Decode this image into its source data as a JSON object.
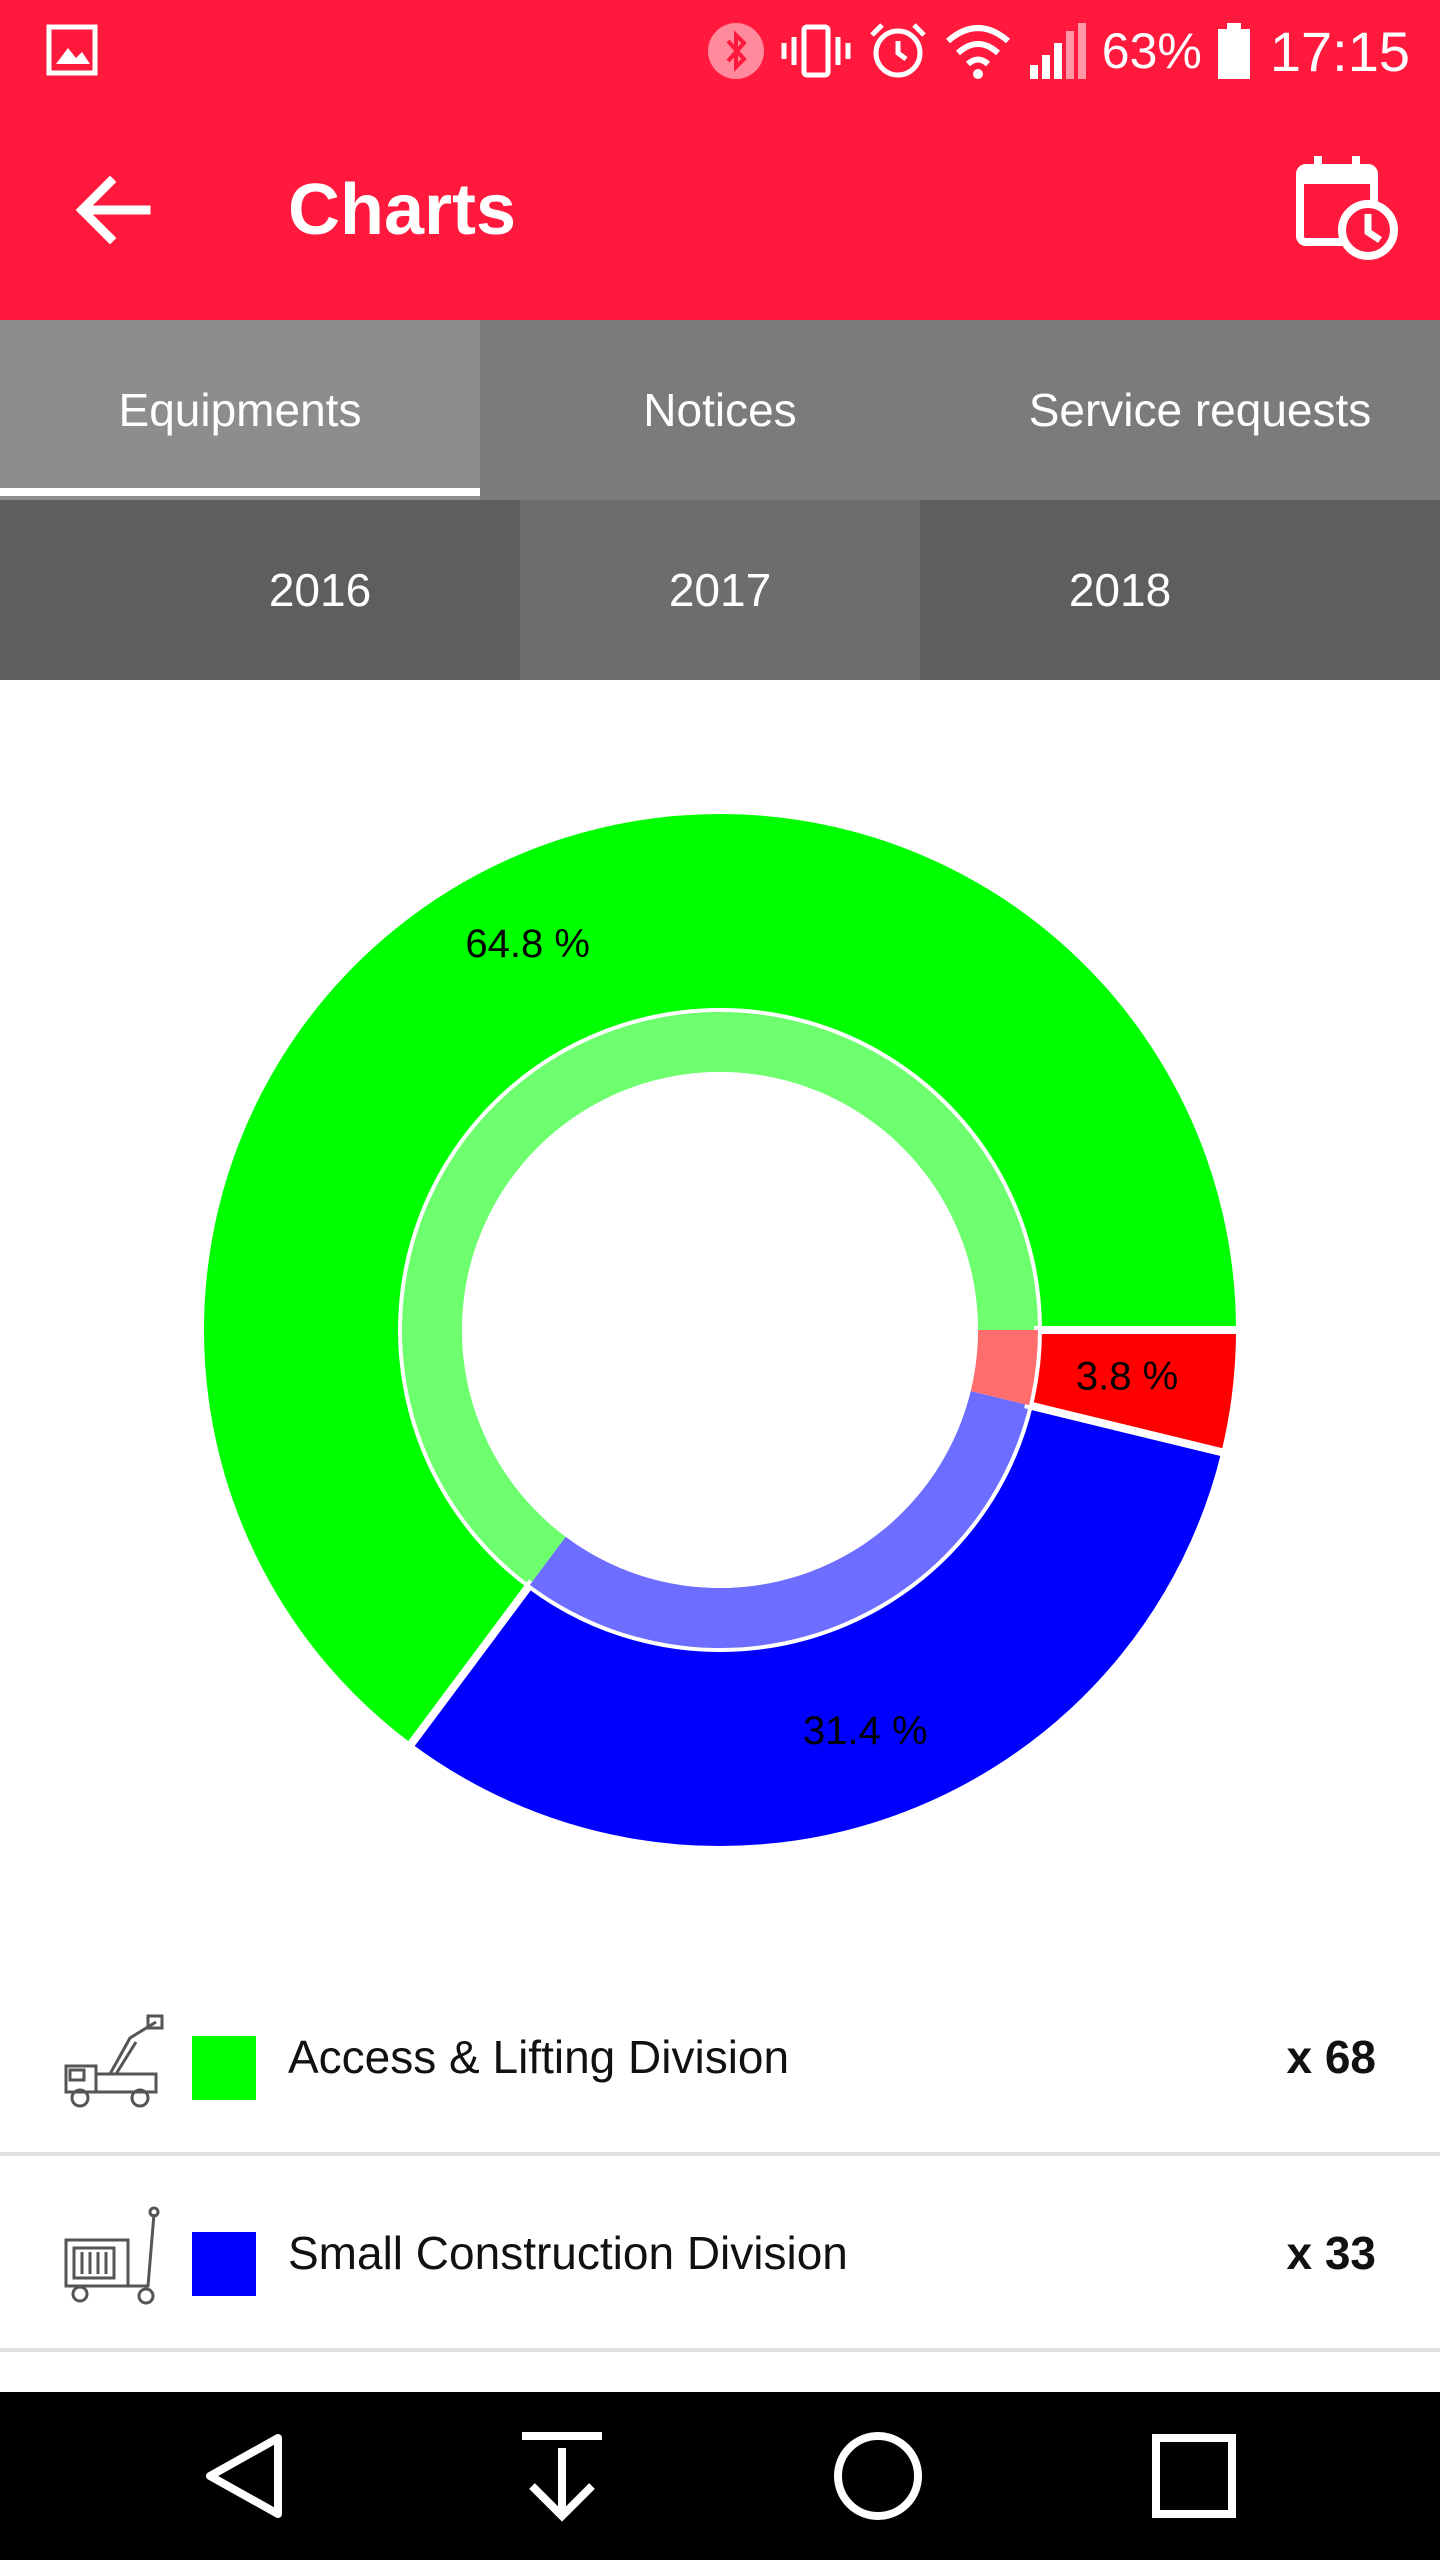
{
  "status_bar": {
    "battery_percent": "63%",
    "time": "17:15",
    "icons": [
      "gallery-icon",
      "bluetooth-icon",
      "vibrate-icon",
      "alarm-icon",
      "wifi-icon",
      "signal-icon",
      "battery-icon"
    ]
  },
  "app_bar": {
    "title": "Charts",
    "back_icon": "arrow-back-icon",
    "action_icon": "calendar-clock-icon"
  },
  "tabs": [
    {
      "label": "Equipments",
      "active": true
    },
    {
      "label": "Notices",
      "active": false
    },
    {
      "label": "Service requests",
      "active": false
    }
  ],
  "years": [
    {
      "label": "2016"
    },
    {
      "label": "2017"
    },
    {
      "label": "2018"
    }
  ],
  "chart_data": {
    "type": "pie",
    "style": "donut",
    "slices": [
      {
        "label": "Access & Lifting Division",
        "value": 64.8,
        "display": "64.8 %",
        "color": "#00ff00",
        "inner_color": "#6dff6d"
      },
      {
        "label": "Small Construction Division",
        "value": 31.4,
        "display": "31.4 %",
        "color": "#0000ff",
        "inner_color": "#6d6dff"
      },
      {
        "label": "",
        "value": 3.8,
        "display": "3.8 %",
        "color": "#ff0000",
        "inner_color": "#ff6d6d"
      }
    ]
  },
  "legend": [
    {
      "label": "Access & Lifting Division",
      "count": "x 68",
      "color": "#00ff00",
      "icon": "lift-truck-icon"
    },
    {
      "label": "Small Construction Division",
      "count": "x 33",
      "color": "#0000ff",
      "icon": "compactor-cart-icon"
    }
  ],
  "nav_bar": {
    "icons": [
      "back-triangle-icon",
      "download-icon",
      "home-circle-icon",
      "recents-square-icon"
    ]
  },
  "colors": {
    "accent": "#ff1a3d",
    "tab_bg": "#7b7b7b",
    "tab_active_bg": "#8d8d8d",
    "year_bg": "#5e5e5e",
    "year_active_bg": "#6d6d6d"
  }
}
